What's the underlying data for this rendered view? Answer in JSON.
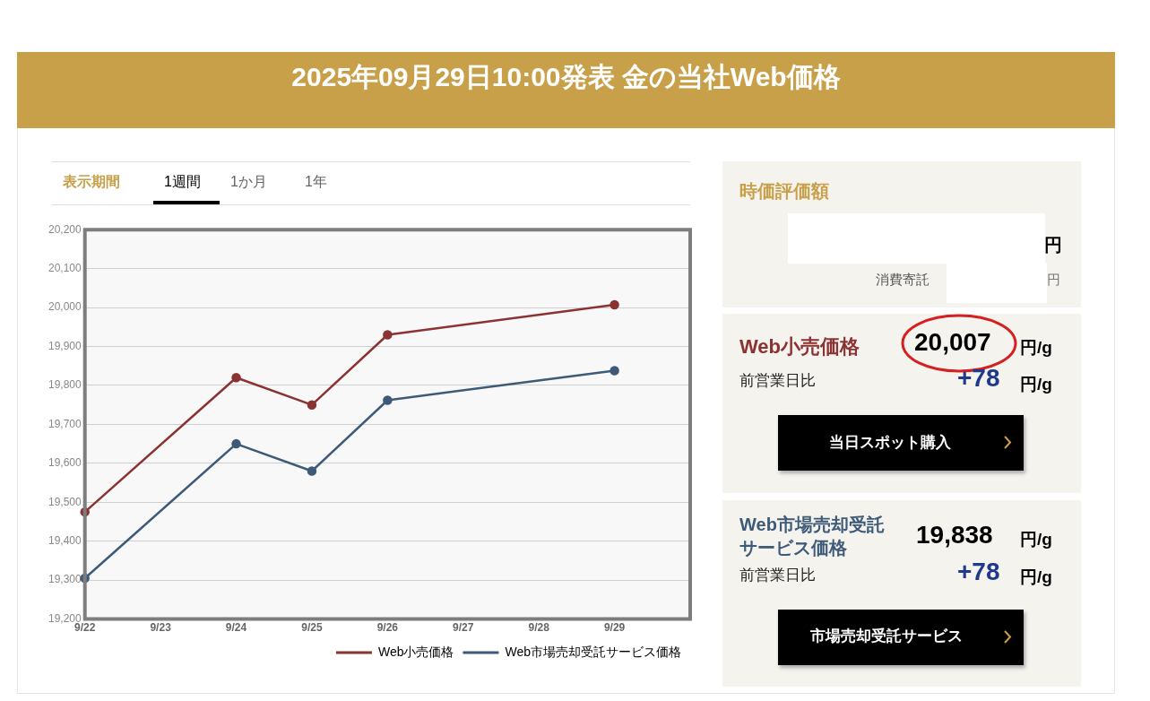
{
  "chart_data": {
    "type": "line",
    "title": "2025年09月29日10:00発表 金の当社Web価格",
    "categories": [
      "9/22",
      "9/23",
      "9/24",
      "9/25",
      "9/26",
      "9/27",
      "9/28",
      "9/29",
      null
    ],
    "series": [
      {
        "name": "Web小売価格",
        "color": "#8b3232",
        "values": [
          19475,
          null,
          19820,
          19750,
          19930,
          null,
          null,
          20007,
          null
        ]
      },
      {
        "name": "Web市場売却受託サービス価格",
        "color": "#3d5a78",
        "values": [
          19305,
          null,
          19650,
          19580,
          19762,
          null,
          null,
          19838,
          null
        ]
      }
    ],
    "ylim": [
      19200,
      20200
    ],
    "yticks": [
      {
        "value": 19200,
        "label": "19,200"
      },
      {
        "value": 19300,
        "label": "19,300"
      },
      {
        "value": 19400,
        "label": "19,400"
      },
      {
        "value": 19500,
        "label": "19,500"
      },
      {
        "value": 19600,
        "label": "19,600"
      },
      {
        "value": 19700,
        "label": "19,700"
      },
      {
        "value": 19800,
        "label": "19,800"
      },
      {
        "value": 19900,
        "label": "19,900"
      },
      {
        "value": 20000,
        "label": "20,000"
      },
      {
        "value": 20100,
        "label": "20,100"
      },
      {
        "value": 20200,
        "label": "20,200"
      }
    ],
    "grid": "y",
    "legend": "bottom right",
    "marker": "circle",
    "line_style": "solid",
    "annotations": [
      "表示期間",
      "1週間",
      "1か月",
      "1年",
      "時価評価額",
      "円",
      "消費寄託",
      "円",
      "Web小売価格",
      "20,007",
      "円/g",
      "前営業日比",
      "+78",
      "円/g",
      "当日スポット購入",
      "Web市場売却受託サービス価格",
      "19,838",
      "円/g",
      "前営業日比",
      "+78",
      "円/g",
      "市場売却受託サービス"
    ]
  }
}
